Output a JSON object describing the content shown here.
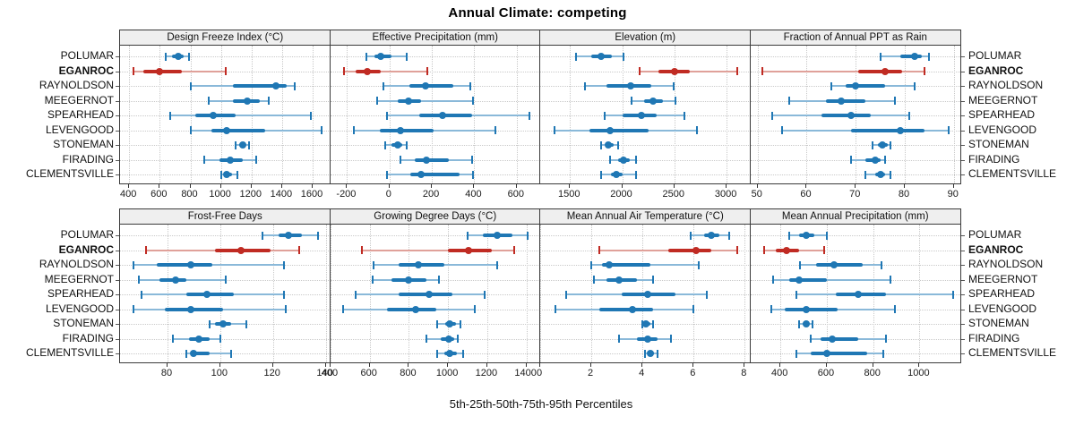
{
  "title": "Annual Climate: competing",
  "xlabel": "5th-25th-50th-75th-95th Percentiles",
  "colors": {
    "blue": "#1f77b4",
    "blue_light": "#8ab9d9",
    "red": "#c02b23",
    "red_light": "#e0a19a",
    "grid": "#c9c9c9",
    "strip_bg": "#efefef",
    "panel_border": "#3a3a3a"
  },
  "locations": [
    {
      "label": "POLUMAR",
      "bold": false
    },
    {
      "label": "EGANROC",
      "bold": true
    },
    {
      "label": "RAYNOLDSON",
      "bold": false
    },
    {
      "label": "MEEGERNOT",
      "bold": false
    },
    {
      "label": "SPEARHEAD",
      "bold": false
    },
    {
      "label": "LEVENGOOD",
      "bold": false
    },
    {
      "label": "STONEMAN",
      "bold": false
    },
    {
      "label": "FIRADING",
      "bold": false
    },
    {
      "label": "CLEMENTSVILLE",
      "bold": false
    }
  ],
  "chart_data": {
    "type": "dotplot-percentiles",
    "percentiles": [
      5,
      25,
      50,
      75,
      95
    ],
    "highlight_row": "EGANROC",
    "legend_note": "thin line = 5th-95th, thick bar = 25th-75th, dot = median",
    "panels": [
      {
        "title": "Design Freeze Index (°C)",
        "grid_row": 0,
        "grid_col": 0,
        "xlim": [
          340,
          1720
        ],
        "ticks": [
          400,
          600,
          800,
          1000,
          1200,
          1400,
          1600
        ],
        "series": [
          {
            "name": "POLUMAR",
            "values": [
              640,
              680,
              720,
              755,
              790
            ]
          },
          {
            "name": "EGANROC",
            "values": [
              425,
              490,
              600,
              745,
              1030
            ]
          },
          {
            "name": "RAYNOLDSON",
            "values": [
              800,
              1080,
              1360,
              1430,
              1480
            ]
          },
          {
            "name": "MEEGERNOT",
            "values": [
              920,
              1080,
              1170,
              1255,
              1310
            ]
          },
          {
            "name": "SPEARHEAD",
            "values": [
              670,
              835,
              950,
              1095,
              1590
            ]
          },
          {
            "name": "LEVENGOOD",
            "values": [
              800,
              935,
              1040,
              1290,
              1660
            ]
          },
          {
            "name": "STONEMAN",
            "values": [
              1095,
              1120,
              1140,
              1160,
              1185
            ]
          },
          {
            "name": "FIRADING",
            "values": [
              890,
              990,
              1060,
              1145,
              1230
            ]
          },
          {
            "name": "CLEMENTSVILLE",
            "values": [
              1000,
              1022,
              1040,
              1070,
              1105
            ]
          }
        ]
      },
      {
        "title": "Effective Precipitation (mm)",
        "grid_row": 0,
        "grid_col": 1,
        "xlim": [
          -280,
          715
        ],
        "ticks": [
          -200,
          0,
          200,
          400,
          600
        ],
        "series": [
          {
            "name": "POLUMAR",
            "values": [
              -110,
              -70,
              -40,
              10,
              80
            ]
          },
          {
            "name": "EGANROC",
            "values": [
              -215,
              -160,
              -105,
              -40,
              180
            ]
          },
          {
            "name": "RAYNOLDSON",
            "values": [
              -30,
              95,
              170,
              300,
              380
            ]
          },
          {
            "name": "MEEGERNOT",
            "values": [
              -60,
              40,
              90,
              150,
              395
            ]
          },
          {
            "name": "SPEARHEAD",
            "values": [
              -10,
              140,
              250,
              390,
              660
            ]
          },
          {
            "name": "LEVENGOOD",
            "values": [
              -170,
              -45,
              50,
              210,
              500
            ]
          },
          {
            "name": "STONEMAN",
            "values": [
              -20,
              10,
              40,
              60,
              80
            ]
          },
          {
            "name": "FIRADING",
            "values": [
              50,
              120,
              175,
              280,
              390
            ]
          },
          {
            "name": "CLEMENTSVILLE",
            "values": [
              -10,
              100,
              150,
              330,
              395
            ]
          }
        ]
      },
      {
        "title": "Elevation (m)",
        "grid_row": 0,
        "grid_col": 2,
        "xlim": [
          1215,
          3235
        ],
        "ticks": [
          1500,
          2000,
          2500,
          3000
        ],
        "series": [
          {
            "name": "POLUMAR",
            "values": [
              1560,
              1700,
              1800,
              1900,
              2010
            ]
          },
          {
            "name": "EGANROC",
            "values": [
              2170,
              2350,
              2500,
              2650,
              3100
            ]
          },
          {
            "name": "RAYNOLDSON",
            "values": [
              1640,
              1850,
              2080,
              2280,
              2490
            ]
          },
          {
            "name": "MEEGERNOT",
            "values": [
              2090,
              2210,
              2300,
              2390,
              2510
            ]
          },
          {
            "name": "SPEARHEAD",
            "values": [
              1830,
              2000,
              2180,
              2330,
              2600
            ]
          },
          {
            "name": "LEVENGOOD",
            "values": [
              1350,
              1690,
              1880,
              2250,
              2720
            ]
          },
          {
            "name": "STONEMAN",
            "values": [
              1795,
              1840,
              1870,
              1915,
              1965
            ]
          },
          {
            "name": "FIRADING",
            "values": [
              1880,
              1960,
              2010,
              2070,
              2130
            ]
          },
          {
            "name": "CLEMENTSVILLE",
            "values": [
              1800,
              1890,
              1940,
              2000,
              2130
            ]
          }
        ]
      },
      {
        "title": "Fraction of Annual PPT as Rain",
        "grid_row": 0,
        "grid_col": 3,
        "xlim": [
          48.5,
          91.5
        ],
        "ticks": [
          50,
          60,
          70,
          80,
          90
        ],
        "series": [
          {
            "name": "POLUMAR",
            "values": [
              75,
              79,
              82,
              83.5,
              85
            ]
          },
          {
            "name": "EGANROC",
            "values": [
              51,
              70.5,
              76,
              79.5,
              84
            ]
          },
          {
            "name": "RAYNOLDSON",
            "values": [
              65,
              68,
              70,
              76,
              82
            ]
          },
          {
            "name": "MEEGERNOT",
            "values": [
              56.5,
              64,
              67,
              72,
              78
            ]
          },
          {
            "name": "SPEARHEAD",
            "values": [
              53,
              63,
              69,
              73,
              81
            ]
          },
          {
            "name": "LEVENGOOD",
            "values": [
              55,
              69,
              79,
              84,
              89
            ]
          },
          {
            "name": "STONEMAN",
            "values": [
              73.5,
              74.5,
              75.5,
              76.5,
              77
            ]
          },
          {
            "name": "FIRADING",
            "values": [
              69,
              72,
              74,
              75,
              76
            ]
          },
          {
            "name": "CLEMENTSVILLE",
            "values": [
              72,
              74,
              75,
              76,
              77
            ]
          }
        ]
      },
      {
        "title": "Frost-Free Days",
        "grid_row": 1,
        "grid_col": 0,
        "xlim": [
          62,
          142
        ],
        "ticks": [
          80,
          100,
          120,
          140
        ],
        "series": [
          {
            "name": "POLUMAR",
            "values": [
              116,
              122,
              126,
              131,
              137
            ]
          },
          {
            "name": "EGANROC",
            "values": [
              72,
              98,
              108,
              119,
              130
            ]
          },
          {
            "name": "RAYNOLDSON",
            "values": [
              67,
              76,
              89,
              97,
              124
            ]
          },
          {
            "name": "MEEGERNOT",
            "values": [
              69,
              77,
              83,
              87,
              102
            ]
          },
          {
            "name": "SPEARHEAD",
            "values": [
              70,
              87,
              95,
              105,
              124
            ]
          },
          {
            "name": "LEVENGOOD",
            "values": [
              67,
              79,
              89,
              101,
              125
            ]
          },
          {
            "name": "STONEMAN",
            "values": [
              96,
              98,
              101,
              104,
              110
            ]
          },
          {
            "name": "FIRADING",
            "values": [
              82,
              88,
              92,
              96,
              100
            ]
          },
          {
            "name": "CLEMENTSVILLE",
            "values": [
              87,
              89,
              90,
              96,
              104
            ]
          }
        ]
      },
      {
        "title": "Growing Degree Days (°C)",
        "grid_row": 1,
        "grid_col": 1,
        "xlim": [
          398,
          1475
        ],
        "ticks": [
          400,
          600,
          800,
          1000,
          1200,
          1400
        ],
        "series": [
          {
            "name": "POLUMAR",
            "values": [
              1100,
              1180,
              1250,
              1330,
              1405
            ]
          },
          {
            "name": "EGANROC",
            "values": [
              560,
              1000,
              1105,
              1225,
              1340
            ]
          },
          {
            "name": "RAYNOLDSON",
            "values": [
              620,
              750,
              850,
              980,
              1250
            ]
          },
          {
            "name": "MEEGERNOT",
            "values": [
              615,
              710,
              800,
              890,
              955
            ]
          },
          {
            "name": "SPEARHEAD",
            "values": [
              530,
              750,
              905,
              1020,
              1185
            ]
          },
          {
            "name": "LEVENGOOD",
            "values": [
              465,
              690,
              835,
              940,
              1135
            ]
          },
          {
            "name": "STONEMAN",
            "values": [
              945,
              985,
              1010,
              1040,
              1065
            ]
          },
          {
            "name": "FIRADING",
            "values": [
              890,
              965,
              1005,
              1030,
              1050
            ]
          },
          {
            "name": "CLEMENTSVILLE",
            "values": [
              945,
              980,
              1010,
              1045,
              1075
            ]
          }
        ]
      },
      {
        "title": "Mean Annual Air Temperature (°C)",
        "grid_row": 1,
        "grid_col": 2,
        "xlim": [
          0,
          8.25
        ],
        "ticks": [
          0,
          2,
          4,
          6,
          8
        ],
        "series": [
          {
            "name": "POLUMAR",
            "values": [
              5.9,
              6.4,
              6.7,
              7.0,
              7.4
            ]
          },
          {
            "name": "EGANROC",
            "values": [
              2.3,
              5.0,
              6.1,
              6.7,
              7.7
            ]
          },
          {
            "name": "RAYNOLDSON",
            "values": [
              2.0,
              2.4,
              2.7,
              4.3,
              6.2
            ]
          },
          {
            "name": "MEEGERNOT",
            "values": [
              2.1,
              2.6,
              3.1,
              3.8,
              4.4
            ]
          },
          {
            "name": "SPEARHEAD",
            "values": [
              1.0,
              3.2,
              4.2,
              5.3,
              6.5
            ]
          },
          {
            "name": "LEVENGOOD",
            "values": [
              0.6,
              2.3,
              3.6,
              4.4,
              6.0
            ]
          },
          {
            "name": "STONEMAN",
            "values": [
              4.0,
              4.1,
              4.15,
              4.3,
              4.4
            ]
          },
          {
            "name": "FIRADING",
            "values": [
              3.1,
              3.8,
              4.2,
              4.6,
              5.1
            ]
          },
          {
            "name": "CLEMENTSVILLE",
            "values": [
              4.1,
              4.2,
              4.3,
              4.45,
              4.6
            ]
          }
        ]
      },
      {
        "title": "Mean Annual Precipitation (mm)",
        "grid_row": 1,
        "grid_col": 3,
        "xlim": [
          270,
          1180
        ],
        "ticks": [
          400,
          600,
          800,
          1000
        ],
        "series": [
          {
            "name": "POLUMAR",
            "values": [
              440,
              480,
              510,
              545,
              600
            ]
          },
          {
            "name": "EGANROC",
            "values": [
              330,
              380,
              425,
              480,
              590
            ]
          },
          {
            "name": "RAYNOLDSON",
            "values": [
              485,
              555,
              630,
              755,
              835
            ]
          },
          {
            "name": "MEEGERNOT",
            "values": [
              370,
              440,
              480,
              600,
              875
            ]
          },
          {
            "name": "SPEARHEAD",
            "values": [
              470,
              640,
              735,
              855,
              1145
            ]
          },
          {
            "name": "LEVENGOOD",
            "values": [
              360,
              420,
              510,
              645,
              895
            ]
          },
          {
            "name": "STONEMAN",
            "values": [
              480,
              495,
              510,
              525,
              540
            ]
          },
          {
            "name": "FIRADING",
            "values": [
              530,
              575,
              625,
              735,
              855
            ]
          },
          {
            "name": "CLEMENTSVILLE",
            "values": [
              470,
              530,
              600,
              775,
              845
            ]
          }
        ]
      }
    ]
  }
}
